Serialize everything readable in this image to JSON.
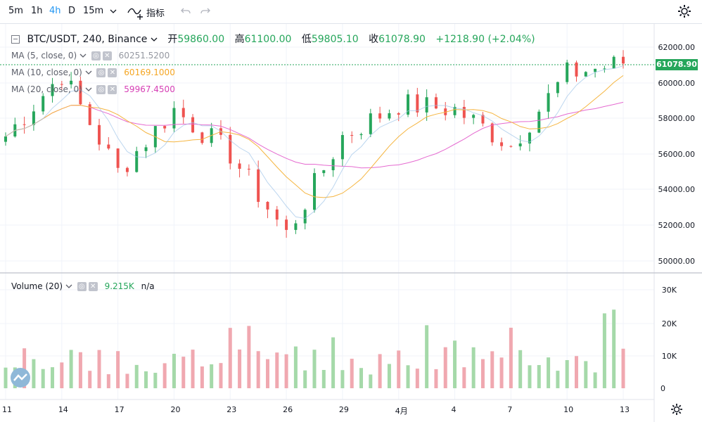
{
  "toolbar": {
    "timeframes": [
      "5m",
      "1h",
      "4h",
      "D",
      "15m"
    ],
    "active_timeframe": "4h",
    "indicators_label": "指标",
    "icons": [
      "chevron-down-icon",
      "indicators-icon",
      "undo-icon",
      "redo-icon",
      "settings-icon"
    ]
  },
  "legend": {
    "symbol": "BTC/USDT, 240, Binance",
    "open_label": "开",
    "open": "59860.00",
    "high_label": "高",
    "high": "61100.00",
    "low_label": "低",
    "low": "59805.10",
    "close_label": "收",
    "close": "61078.90",
    "change": "+1218.90 (+2.04%)"
  },
  "indicators": [
    {
      "label": "MA (5, close, 0)",
      "value": "60251.5200",
      "color": "#9598a1"
    },
    {
      "label": "MA (10, close, 0)",
      "value": "60169.1000",
      "color": "#f5b540"
    },
    {
      "label": "MA (20, close, 0)",
      "value": "59967.4500",
      "color": "#e040b8"
    }
  ],
  "volume_indicator": {
    "label": "Volume (20)",
    "value": "9.215K",
    "extra": "n/a"
  },
  "price_axis": [
    "62000.00",
    "60000.00",
    "58000.00",
    "56000.00",
    "54000.00",
    "52000.00",
    "50000.00"
  ],
  "volume_axis": [
    "30K",
    "20K",
    "10K",
    "0"
  ],
  "last_price": "61078.90",
  "time_axis": [
    "11",
    "14",
    "17",
    "20",
    "23",
    "26",
    "29",
    "4月",
    "4",
    "7",
    "10",
    "13"
  ],
  "colors": {
    "up": "#26a65b",
    "down": "#ef5350",
    "up_vol": "#a5d9a9",
    "down_vol": "#f0a8b0"
  },
  "chart_data": {
    "type": "candlestick",
    "price_range": [
      49500,
      63000
    ],
    "volume_range": [
      0,
      33000
    ],
    "anchor_closes": [
      {
        "date": "11",
        "close": 57000
      },
      {
        "date": "14",
        "close": 60500
      },
      {
        "date": "17",
        "close": 55000
      },
      {
        "date": "20",
        "close": 58500
      },
      {
        "date": "23",
        "close": 56000
      },
      {
        "date": "26",
        "close": 51500
      },
      {
        "date": "29",
        "close": 57000
      },
      {
        "date": "4月",
        "close": 58800
      },
      {
        "date": "4",
        "close": 58500
      },
      {
        "date": "7",
        "close": 56500
      },
      {
        "date": "10",
        "close": 60500
      },
      {
        "date": "13",
        "close": 61078.9
      }
    ]
  }
}
